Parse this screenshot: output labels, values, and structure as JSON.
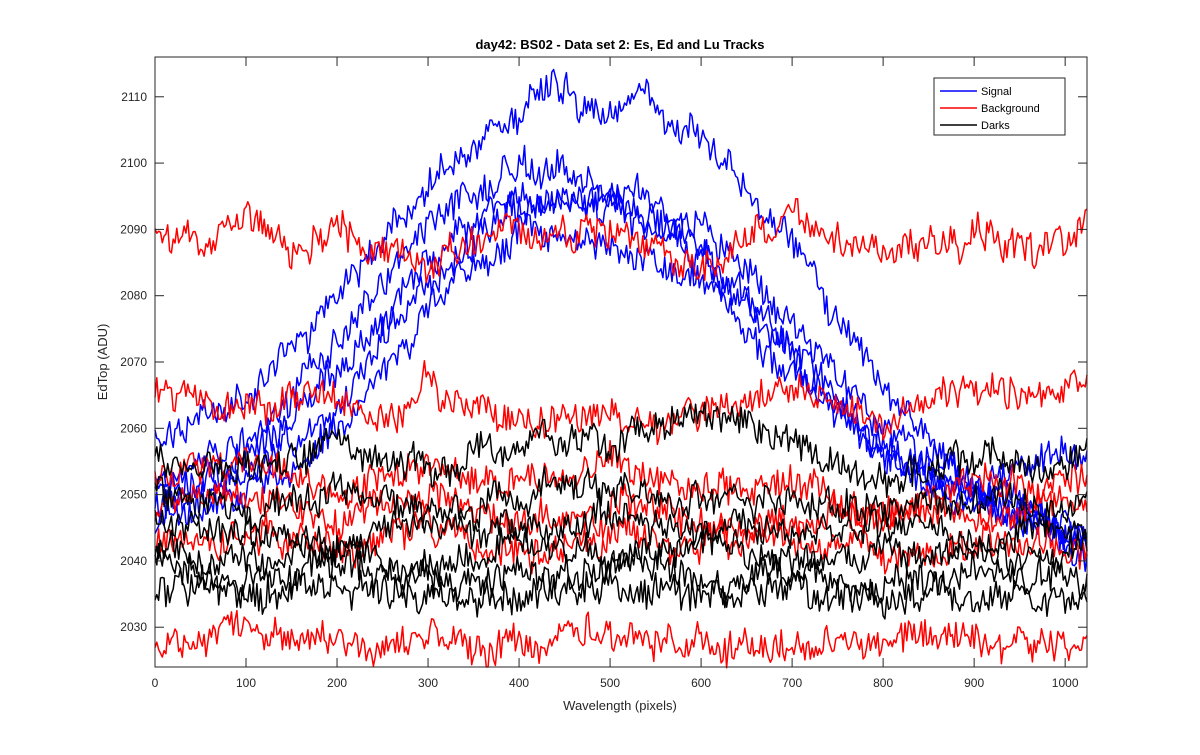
{
  "chart_data": {
    "type": "line",
    "title": "day42: BS02 - Data set 2: Es, Ed and Lu Tracks",
    "xlabel": "Wavelength (pixels)",
    "ylabel": "EdTop (ADU)",
    "xlim": [
      0,
      1024
    ],
    "ylim": [
      2024,
      2116
    ],
    "xticks": [
      0,
      100,
      200,
      300,
      400,
      500,
      600,
      700,
      800,
      900,
      1000
    ],
    "yticks": [
      2030,
      2040,
      2050,
      2060,
      2070,
      2080,
      2090,
      2100,
      2110
    ],
    "grid": false,
    "legend_position": "top-right",
    "legend": [
      {
        "name": "Signal",
        "color": "#0000ff"
      },
      {
        "name": "Background",
        "color": "#ff0000"
      },
      {
        "name": "Darks",
        "color": "#000000"
      }
    ],
    "series": [
      {
        "group": "Signal",
        "color": "#0000ff",
        "x": [
          0,
          100,
          200,
          300,
          400,
          440,
          500,
          530,
          600,
          700,
          800,
          900,
          1000,
          1024
        ],
        "values": [
          2058,
          2064,
          2080,
          2097,
          2108,
          2112,
          2107,
          2110,
          2104,
          2088,
          2065,
          2052,
          2043,
          2040
        ]
      },
      {
        "group": "Signal",
        "color": "#0000ff",
        "x": [
          0,
          100,
          200,
          300,
          400,
          500,
          600,
          700,
          800,
          900,
          1000,
          1024
        ],
        "values": [
          2052,
          2058,
          2072,
          2090,
          2100,
          2097,
          2090,
          2076,
          2060,
          2050,
          2045,
          2043
        ]
      },
      {
        "group": "Signal",
        "color": "#0000ff",
        "x": [
          0,
          100,
          200,
          300,
          400,
          500,
          600,
          700,
          800,
          900,
          1000,
          1024
        ],
        "values": [
          2050,
          2055,
          2068,
          2086,
          2096,
          2095,
          2087,
          2072,
          2058,
          2049,
          2044,
          2042
        ]
      },
      {
        "group": "Signal",
        "color": "#0000ff",
        "x": [
          0,
          100,
          200,
          300,
          400,
          500,
          600,
          700,
          800,
          900,
          1000,
          1024
        ],
        "values": [
          2048,
          2053,
          2064,
          2082,
          2093,
          2093,
          2086,
          2070,
          2056,
          2050,
          2046,
          2044
        ]
      },
      {
        "group": "Signal",
        "color": "#0000ff",
        "x": [
          0,
          100,
          200,
          300,
          400,
          500,
          600,
          700,
          800,
          900,
          1000,
          1024
        ],
        "values": [
          2046,
          2050,
          2060,
          2078,
          2089,
          2088,
          2082,
          2068,
          2057,
          2052,
          2056,
          2055
        ]
      },
      {
        "group": "Background",
        "color": "#ff0000",
        "x": [
          0,
          50,
          100,
          150,
          200,
          300,
          400,
          500,
          600,
          700,
          800,
          900,
          1000,
          1024
        ],
        "values": [
          2089,
          2087,
          2092,
          2088,
          2089,
          2085,
          2090,
          2090,
          2084,
          2092,
          2086,
          2089,
          2087,
          2091
        ]
      },
      {
        "group": "Background",
        "color": "#ff0000",
        "x": [
          0,
          100,
          180,
          250,
          300,
          400,
          500,
          600,
          700,
          800,
          900,
          1000,
          1024
        ],
        "values": [
          2066,
          2062,
          2066,
          2060,
          2067,
          2060,
          2062,
          2061,
          2067,
          2060,
          2066,
          2065,
          2066
        ]
      },
      {
        "group": "Background",
        "color": "#ff0000",
        "x": [
          0,
          100,
          200,
          300,
          400,
          500,
          600,
          700,
          800,
          900,
          1000,
          1024
        ],
        "values": [
          2052,
          2055,
          2050,
          2054,
          2051,
          2055,
          2050,
          2052,
          2046,
          2052,
          2050,
          2053
        ]
      },
      {
        "group": "Background",
        "color": "#ff0000",
        "x": [
          0,
          100,
          200,
          300,
          400,
          500,
          600,
          700,
          800,
          900,
          1000,
          1024
        ],
        "values": [
          2048,
          2050,
          2047,
          2049,
          2046,
          2048,
          2047,
          2045,
          2047,
          2046,
          2049,
          2048
        ]
      },
      {
        "group": "Background",
        "color": "#ff0000",
        "x": [
          0,
          100,
          200,
          300,
          400,
          500,
          600,
          700,
          800,
          900,
          1000,
          1024
        ],
        "values": [
          2043,
          2044,
          2042,
          2045,
          2041,
          2044,
          2042,
          2044,
          2041,
          2043,
          2042,
          2041
        ]
      },
      {
        "group": "Background",
        "color": "#ff0000",
        "x": [
          0,
          100,
          200,
          300,
          400,
          500,
          600,
          700,
          800,
          900,
          1000,
          1024
        ],
        "values": [
          2027,
          2030,
          2027,
          2028,
          2027,
          2029,
          2028,
          2027,
          2028,
          2029,
          2027,
          2027
        ]
      },
      {
        "group": "Darks",
        "color": "#000000",
        "x": [
          0,
          100,
          200,
          300,
          400,
          500,
          600,
          700,
          800,
          900,
          1000,
          1024
        ],
        "values": [
          2055,
          2053,
          2058,
          2054,
          2058,
          2057,
          2063,
          2058,
          2052,
          2056,
          2054,
          2058
        ]
      },
      {
        "group": "Darks",
        "color": "#000000",
        "x": [
          0,
          100,
          200,
          300,
          400,
          500,
          600,
          700,
          800,
          900,
          1000,
          1024
        ],
        "values": [
          2050,
          2047,
          2051,
          2048,
          2050,
          2052,
          2049,
          2050,
          2047,
          2050,
          2048,
          2049
        ]
      },
      {
        "group": "Darks",
        "color": "#000000",
        "x": [
          0,
          100,
          200,
          300,
          400,
          500,
          600,
          700,
          800,
          900,
          1000,
          1024
        ],
        "values": [
          2046,
          2044,
          2043,
          2046,
          2044,
          2047,
          2045,
          2044,
          2046,
          2043,
          2046,
          2044
        ]
      },
      {
        "group": "Darks",
        "color": "#000000",
        "x": [
          0,
          100,
          200,
          300,
          400,
          500,
          600,
          700,
          800,
          900,
          1000,
          1024
        ],
        "values": [
          2042,
          2040,
          2042,
          2039,
          2043,
          2041,
          2043,
          2040,
          2042,
          2041,
          2040,
          2042
        ]
      },
      {
        "group": "Darks",
        "color": "#000000",
        "x": [
          0,
          100,
          200,
          300,
          400,
          500,
          600,
          700,
          800,
          900,
          1000,
          1024
        ],
        "values": [
          2040,
          2038,
          2039,
          2037,
          2038,
          2039,
          2037,
          2038,
          2036,
          2038,
          2037,
          2036
        ]
      },
      {
        "group": "Darks",
        "color": "#000000",
        "x": [
          0,
          100,
          200,
          300,
          400,
          500,
          600,
          700,
          800,
          900,
          1000,
          1024
        ],
        "values": [
          2037,
          2035,
          2036,
          2035,
          2034,
          2036,
          2035,
          2036,
          2034,
          2035,
          2034,
          2035
        ]
      }
    ]
  }
}
